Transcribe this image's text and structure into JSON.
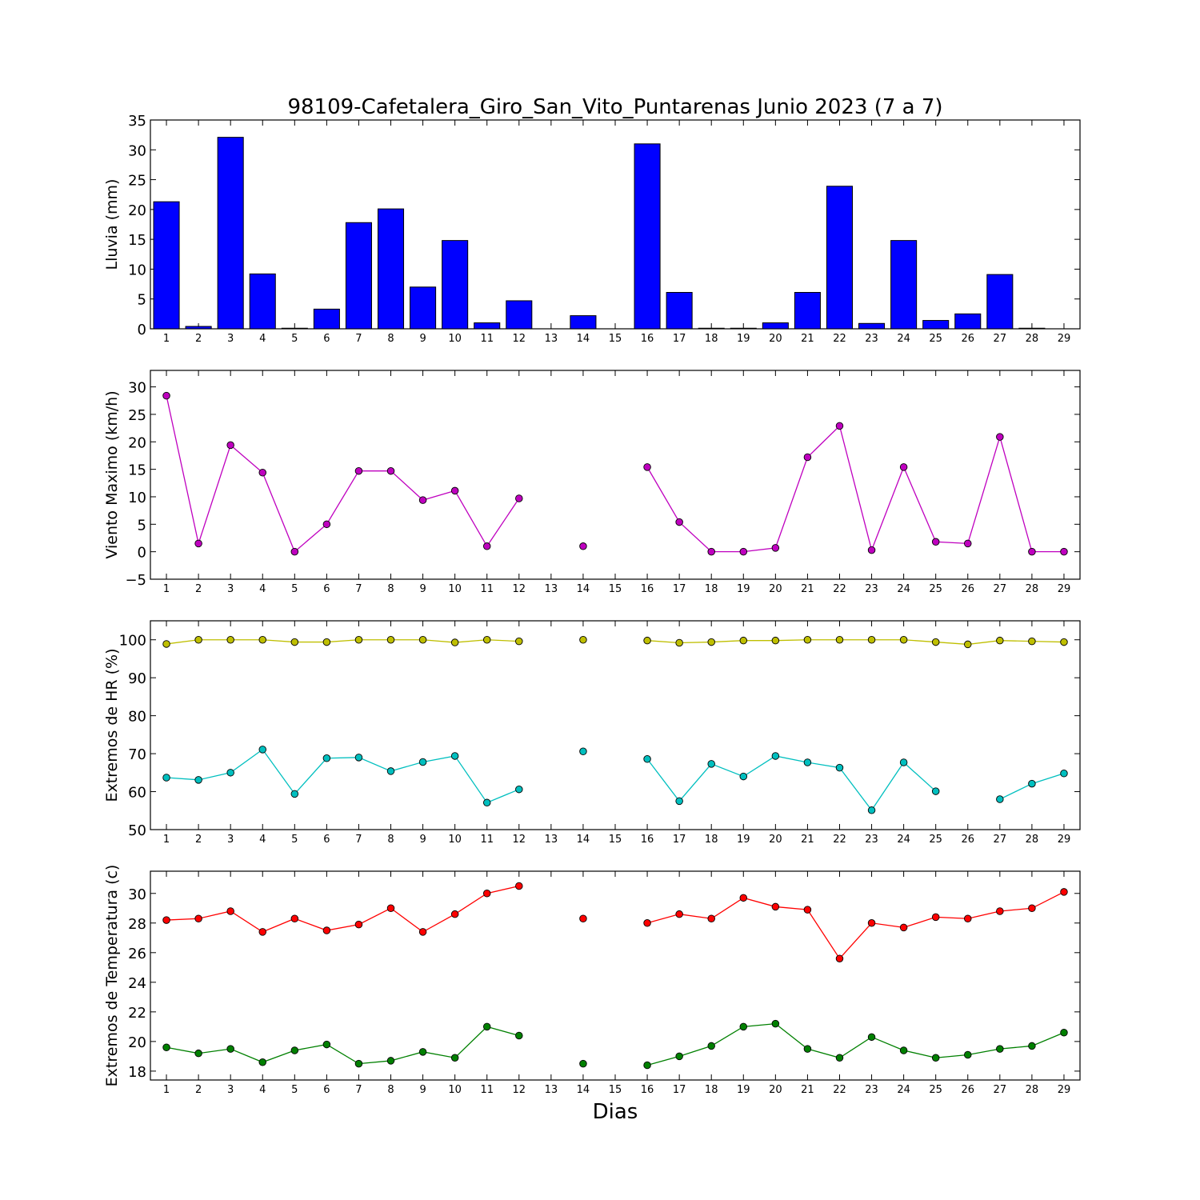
{
  "title": "98109-Cafetalera_Giro_San_Vito_Puntarenas Junio 2023  (7 a 7)",
  "x_label": "Dias",
  "days": [
    1,
    2,
    3,
    4,
    5,
    6,
    7,
    8,
    9,
    10,
    11,
    12,
    13,
    14,
    15,
    16,
    17,
    18,
    19,
    20,
    21,
    22,
    23,
    24,
    25,
    26,
    27,
    28,
    29
  ],
  "chart_data": [
    {
      "type": "bar",
      "ylabel": "Lluvia (mm)",
      "ylim": [
        0,
        35
      ],
      "yticks": [
        0,
        5,
        10,
        15,
        20,
        25,
        30,
        35
      ],
      "series": [
        {
          "color": "#0000ff",
          "values": [
            21.3,
            0.4,
            32.1,
            9.2,
            0.1,
            3.3,
            17.8,
            20.1,
            7.0,
            14.8,
            1.0,
            4.7,
            null,
            2.2,
            null,
            31.0,
            6.1,
            0.1,
            0.1,
            1.0,
            6.1,
            23.9,
            0.9,
            14.8,
            1.4,
            2.5,
            9.1,
            0.1,
            null
          ]
        }
      ]
    },
    {
      "type": "line",
      "ylabel": "Viento Maximo (km/h)",
      "ylim": [
        -5,
        33
      ],
      "yticks": [
        -5,
        0,
        5,
        10,
        15,
        20,
        25,
        30
      ],
      "series": [
        {
          "color": "#bf00bf",
          "values": [
            28.4,
            1.5,
            19.4,
            14.4,
            0.0,
            5.0,
            14.7,
            14.7,
            9.4,
            11.1,
            1.0,
            9.7,
            null,
            1.0,
            null,
            15.4,
            5.4,
            0.0,
            0.0,
            0.7,
            17.2,
            22.9,
            0.3,
            15.4,
            1.8,
            1.5,
            20.9,
            0.0,
            0.0
          ]
        }
      ]
    },
    {
      "type": "line",
      "ylabel": "Extremos de HR (%)",
      "ylim": [
        50,
        105
      ],
      "yticks": [
        50,
        60,
        70,
        80,
        90,
        100
      ],
      "series": [
        {
          "color": "#bfbf00",
          "values": [
            98.9,
            100.0,
            100.0,
            100.0,
            99.4,
            99.4,
            100.0,
            100.0,
            100.0,
            99.3,
            100.0,
            99.6,
            null,
            100.0,
            null,
            99.8,
            99.2,
            99.4,
            99.8,
            99.8,
            100.0,
            100.0,
            100.0,
            100.0,
            99.4,
            98.8,
            99.8,
            99.6,
            99.4
          ]
        },
        {
          "color": "#00bfbf",
          "values": [
            63.7,
            63.1,
            65.0,
            71.1,
            59.4,
            68.8,
            69.0,
            65.4,
            67.8,
            69.4,
            57.1,
            60.6,
            null,
            70.6,
            null,
            68.6,
            57.5,
            67.3,
            64.0,
            69.4,
            67.7,
            66.3,
            55.1,
            67.7,
            60.1,
            null,
            58.0,
            62.1,
            64.8
          ]
        }
      ]
    },
    {
      "type": "line",
      "ylabel": "Extremos de Temperatura (c)",
      "ylim": [
        17.4,
        31.5
      ],
      "yticks": [
        18,
        20,
        22,
        24,
        26,
        28,
        30
      ],
      "series": [
        {
          "color": "#ff0000",
          "values": [
            28.2,
            28.3,
            28.8,
            27.4,
            28.3,
            27.5,
            27.9,
            29.0,
            27.4,
            28.6,
            30.0,
            30.5,
            null,
            28.3,
            null,
            28.0,
            28.6,
            28.3,
            29.7,
            29.1,
            28.9,
            25.6,
            28.0,
            27.7,
            28.4,
            28.3,
            28.8,
            29.0,
            30.1
          ]
        },
        {
          "color": "#008000",
          "values": [
            19.6,
            19.2,
            19.5,
            18.6,
            19.4,
            19.8,
            18.5,
            18.7,
            19.3,
            18.9,
            21.0,
            20.4,
            null,
            18.5,
            null,
            18.4,
            19.0,
            19.7,
            21.0,
            21.2,
            19.5,
            18.9,
            20.3,
            19.4,
            18.9,
            19.1,
            19.5,
            19.7,
            20.6
          ]
        }
      ]
    }
  ]
}
